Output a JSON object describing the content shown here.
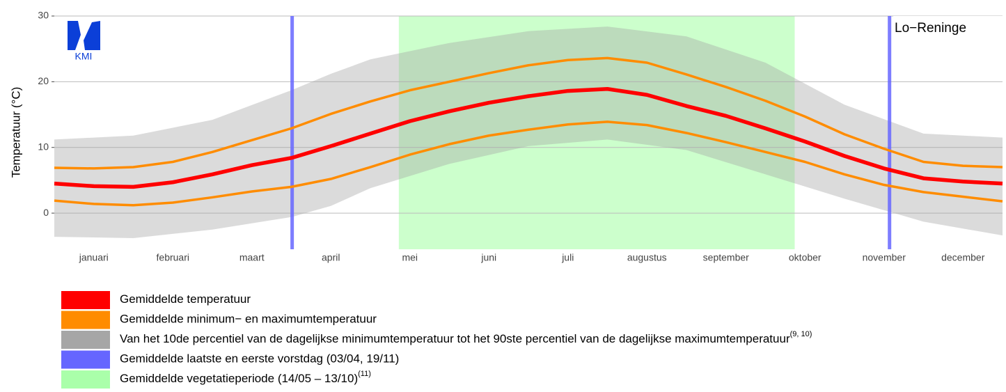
{
  "chart_data": {
    "type": "climate-band",
    "station": "Lo−Reninge",
    "logo": "KMI",
    "y_label": "Temperatuur (°C)",
    "xlim": [
      0,
      12
    ],
    "ylim": [
      -5.5,
      30
    ],
    "yticks": [
      0,
      10,
      20,
      30
    ],
    "grid": true,
    "xticks": [
      {
        "value": 0.5,
        "label": "januari"
      },
      {
        "value": 1.5,
        "label": "februari"
      },
      {
        "value": 2.5,
        "label": "maart"
      },
      {
        "value": 3.5,
        "label": "april"
      },
      {
        "value": 4.5,
        "label": "mei"
      },
      {
        "value": 5.5,
        "label": "juni"
      },
      {
        "value": 6.5,
        "label": "juli"
      },
      {
        "value": 7.5,
        "label": "augustus"
      },
      {
        "value": 8.5,
        "label": "september"
      },
      {
        "value": 9.5,
        "label": "oktober"
      },
      {
        "value": 10.5,
        "label": "november"
      },
      {
        "value": 11.5,
        "label": "december"
      }
    ],
    "vegetation": {
      "name": "Gemiddelde vegetatieperiode (14/05 – 13/10)",
      "note": "(11)",
      "color": "#aaffaa",
      "start": 4.36,
      "end": 9.37
    },
    "band": {
      "name": "Van het 10de percentiel van de dagelijkse minimumtemperatuur tot het 90ste percentiel van de dagelijkse maximumtemperatuur",
      "note": "(9, 10)",
      "color": "#a6a6a6",
      "x": [
        0,
        1,
        2,
        3,
        3.5,
        4,
        5,
        6,
        7,
        8,
        9,
        10,
        11,
        12
      ],
      "lower": [
        -3.6,
        -3.8,
        -2.5,
        -0.6,
        1.1,
        3.8,
        7.5,
        10.2,
        11.2,
        9.6,
        5.9,
        2.2,
        -1.3,
        -3.4
      ],
      "upper": [
        11.2,
        11.8,
        14.2,
        18.7,
        21.2,
        23.4,
        25.9,
        27.7,
        28.4,
        26.9,
        22.9,
        16.5,
        12.1,
        11.5
      ]
    },
    "frost": {
      "name": "Gemiddelde laatste en eerste vorstdag (03/04, 19/11)",
      "color": "#6666ff",
      "x": [
        3.01,
        10.57
      ]
    },
    "x": [
      0,
      0.5,
      1,
      1.5,
      2,
      2.5,
      3,
      3.5,
      4,
      4.5,
      5,
      5.5,
      6,
      6.5,
      7,
      7.5,
      8,
      8.5,
      9,
      9.5,
      10,
      10.5,
      11,
      11.5,
      12
    ],
    "minmax": {
      "name": "Gemiddelde minimum− en maximumtemperatuur",
      "color": "#ff8c00",
      "max": [
        6.9,
        6.8,
        7.0,
        7.8,
        9.3,
        11.1,
        12.9,
        15.1,
        17.0,
        18.7,
        20.0,
        21.3,
        22.5,
        23.3,
        23.6,
        22.9,
        21.1,
        19.2,
        17.1,
        14.7,
        12.0,
        9.8,
        7.8,
        7.2,
        7.0
      ],
      "min": [
        1.9,
        1.4,
        1.2,
        1.6,
        2.4,
        3.3,
        4.0,
        5.2,
        7.0,
        8.9,
        10.5,
        11.8,
        12.7,
        13.5,
        13.9,
        13.4,
        12.2,
        10.8,
        9.3,
        7.8,
        5.9,
        4.3,
        3.2,
        2.5,
        1.8
      ]
    },
    "mean": {
      "name": "Gemiddelde temperatuur",
      "color": "#ff0000",
      "values": [
        4.5,
        4.1,
        4.0,
        4.7,
        5.9,
        7.3,
        8.4,
        10.2,
        12.1,
        14.0,
        15.5,
        16.8,
        17.8,
        18.6,
        18.9,
        18.0,
        16.3,
        14.8,
        12.9,
        10.9,
        8.7,
        6.8,
        5.3,
        4.8,
        4.5
      ]
    }
  }
}
